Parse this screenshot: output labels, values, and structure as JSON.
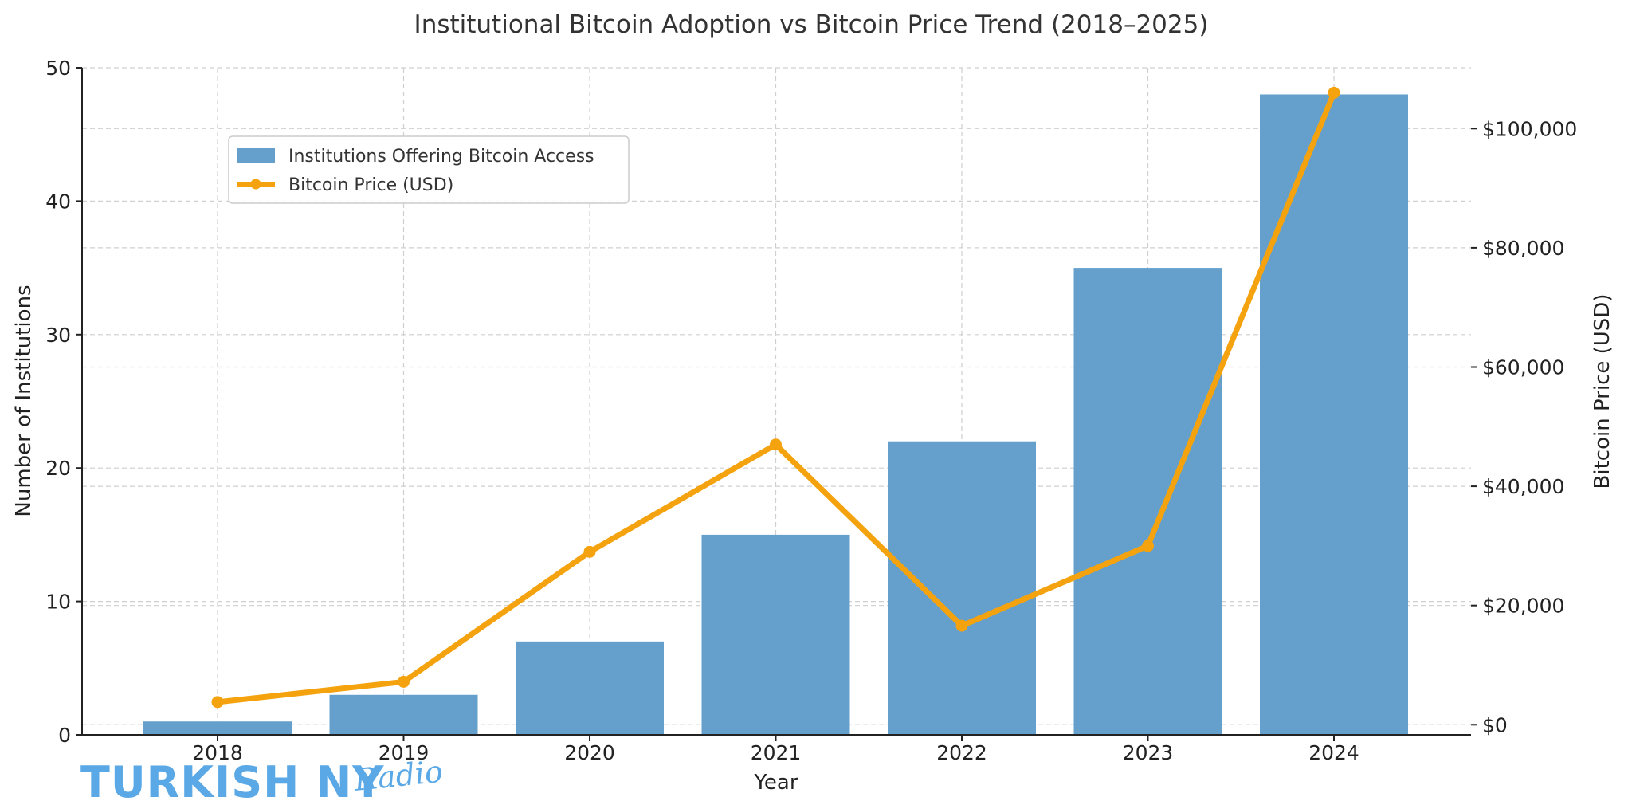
{
  "chart_data": {
    "type": "bar",
    "title": "Institutional Bitcoin Adoption vs Bitcoin Price Trend (2018–2025)",
    "xlabel": "Year",
    "ylabel": "Number of Institutions",
    "y2label": "Bitcoin Price (USD)",
    "categories": [
      "2018",
      "2019",
      "2020",
      "2021",
      "2022",
      "2023",
      "2024"
    ],
    "ylim": [
      0,
      50
    ],
    "y2lim": [
      -1700,
      110200
    ],
    "yticks": [
      "0",
      "10",
      "20",
      "30",
      "40",
      "50"
    ],
    "y2ticks": [
      "$0",
      "$20,000",
      "$40,000",
      "$60,000",
      "$80,000",
      "$100,000"
    ],
    "grid": true,
    "legend_position": "upper-left",
    "series": [
      {
        "name": "Institutions Offering Bitcoin Access",
        "type": "bar",
        "axis": "left",
        "color": "#64a0cb",
        "values": [
          1,
          3,
          7,
          15,
          22,
          35,
          48
        ]
      },
      {
        "name": "Bitcoin Price (USD)",
        "type": "line",
        "axis": "right",
        "color": "#f4a30f",
        "marker": "circle",
        "values": [
          3800,
          7200,
          29000,
          47000,
          16600,
          30000,
          106000
        ]
      }
    ]
  },
  "watermark": {
    "main": "TURKISH NY",
    "script": "Radio"
  }
}
